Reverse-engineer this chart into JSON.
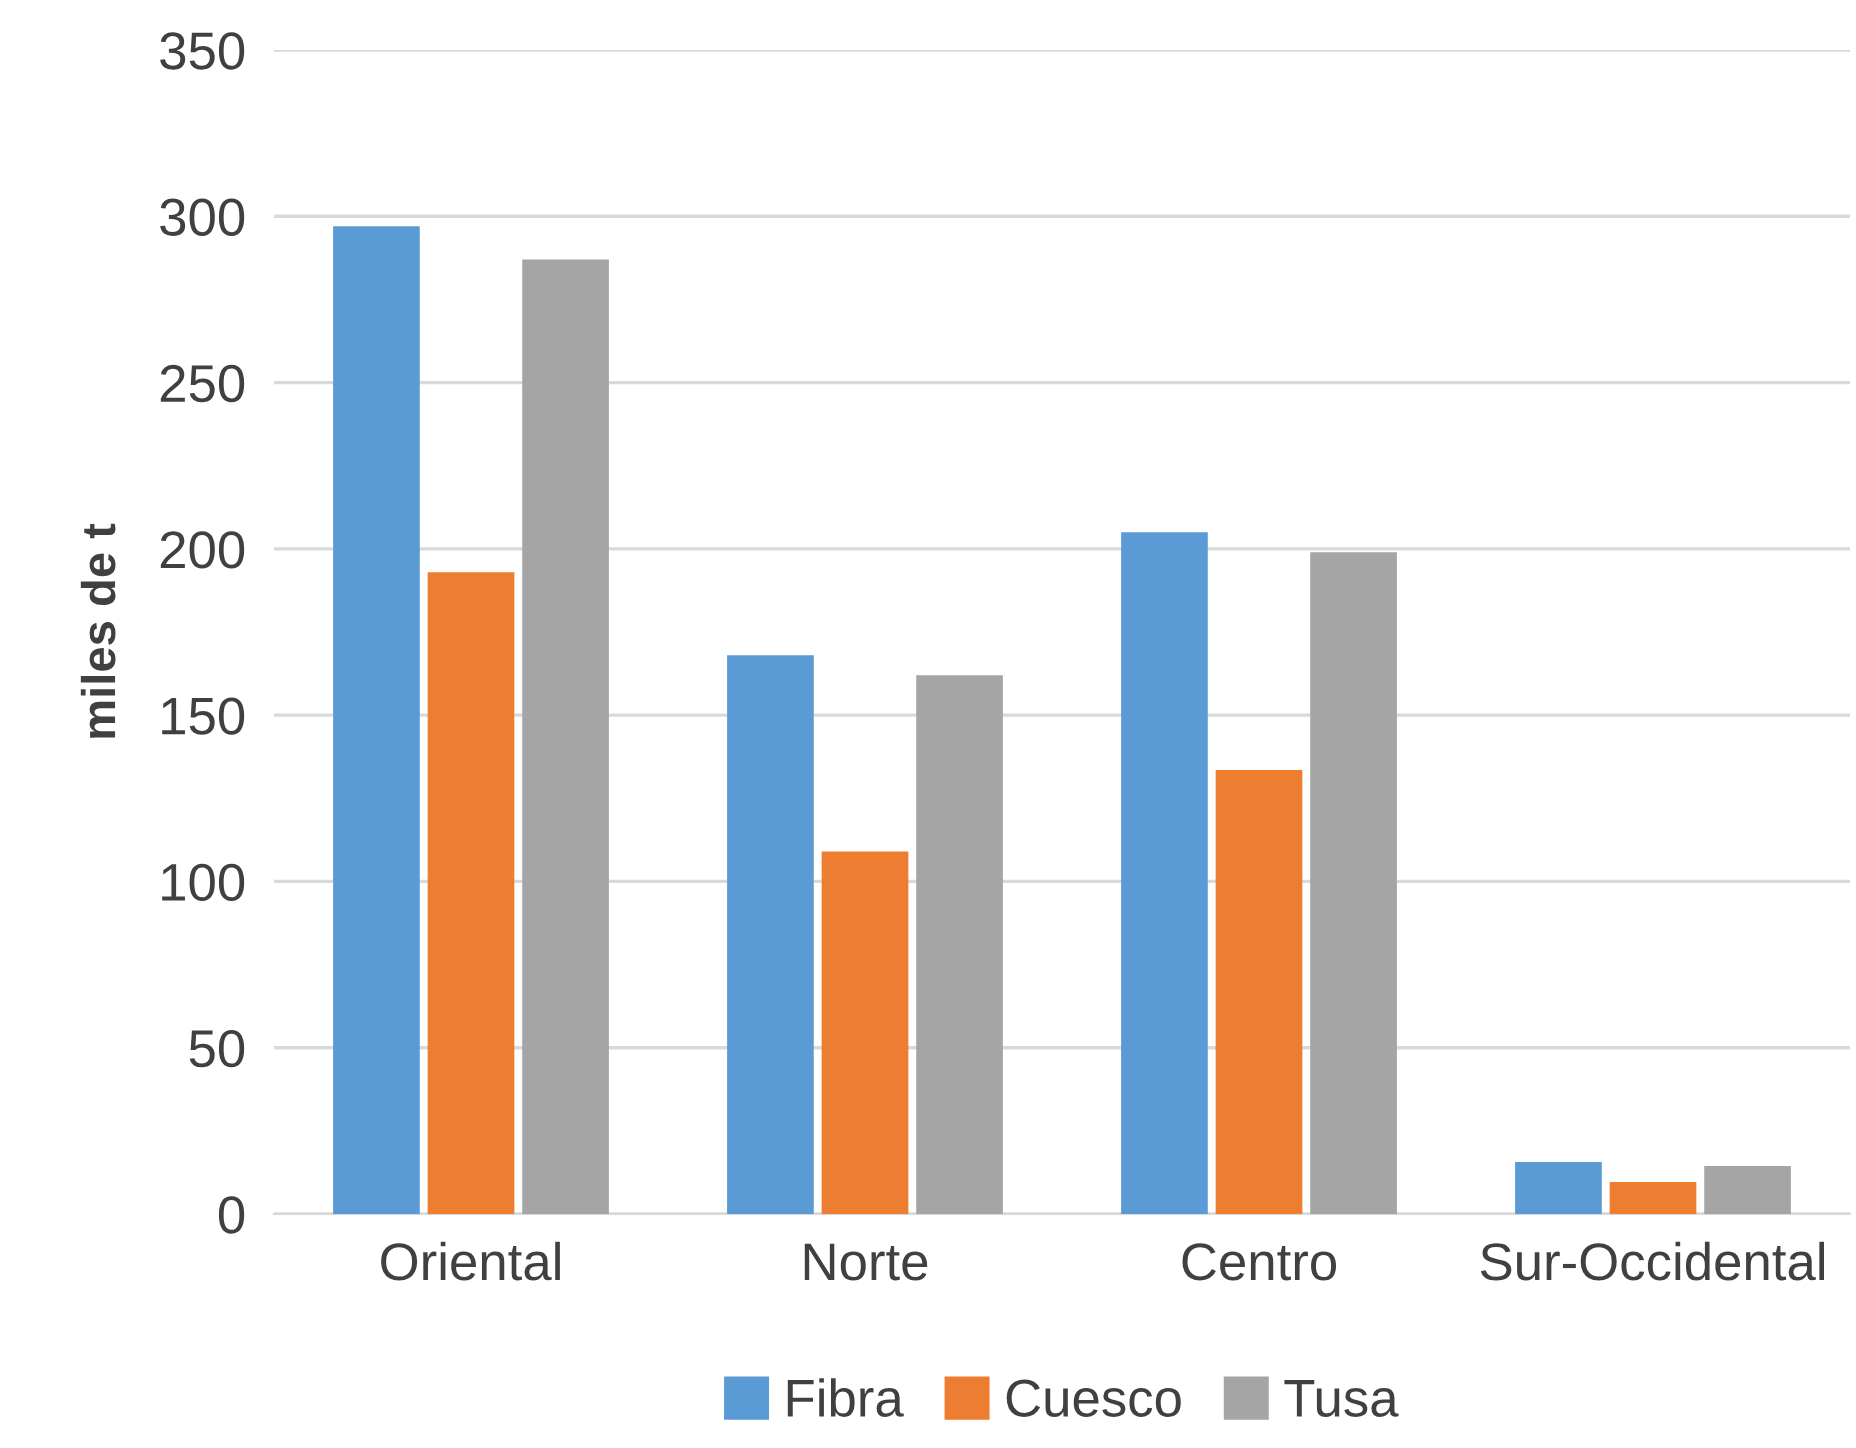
{
  "chart_data": {
    "type": "bar",
    "ylabel": "miles de t",
    "categories": [
      "Oriental",
      "Norte",
      "Centro",
      "Sur-Occidental"
    ],
    "series": [
      {
        "name": "Fibra",
        "color": "#5b9bd5",
        "values": [
          297,
          168,
          205,
          15.6
        ]
      },
      {
        "name": "Cuesco",
        "color": "#ed7d31",
        "values": [
          193,
          109,
          133.5,
          9.6
        ]
      },
      {
        "name": "Tusa",
        "color": "#a5a5a5",
        "values": [
          287,
          162,
          199,
          14.4
        ]
      }
    ],
    "ylim": [
      0,
      350
    ],
    "yticks": [
      0,
      50,
      100,
      150,
      200,
      250,
      300,
      350
    ],
    "grid": "y",
    "legend": "bottom"
  }
}
